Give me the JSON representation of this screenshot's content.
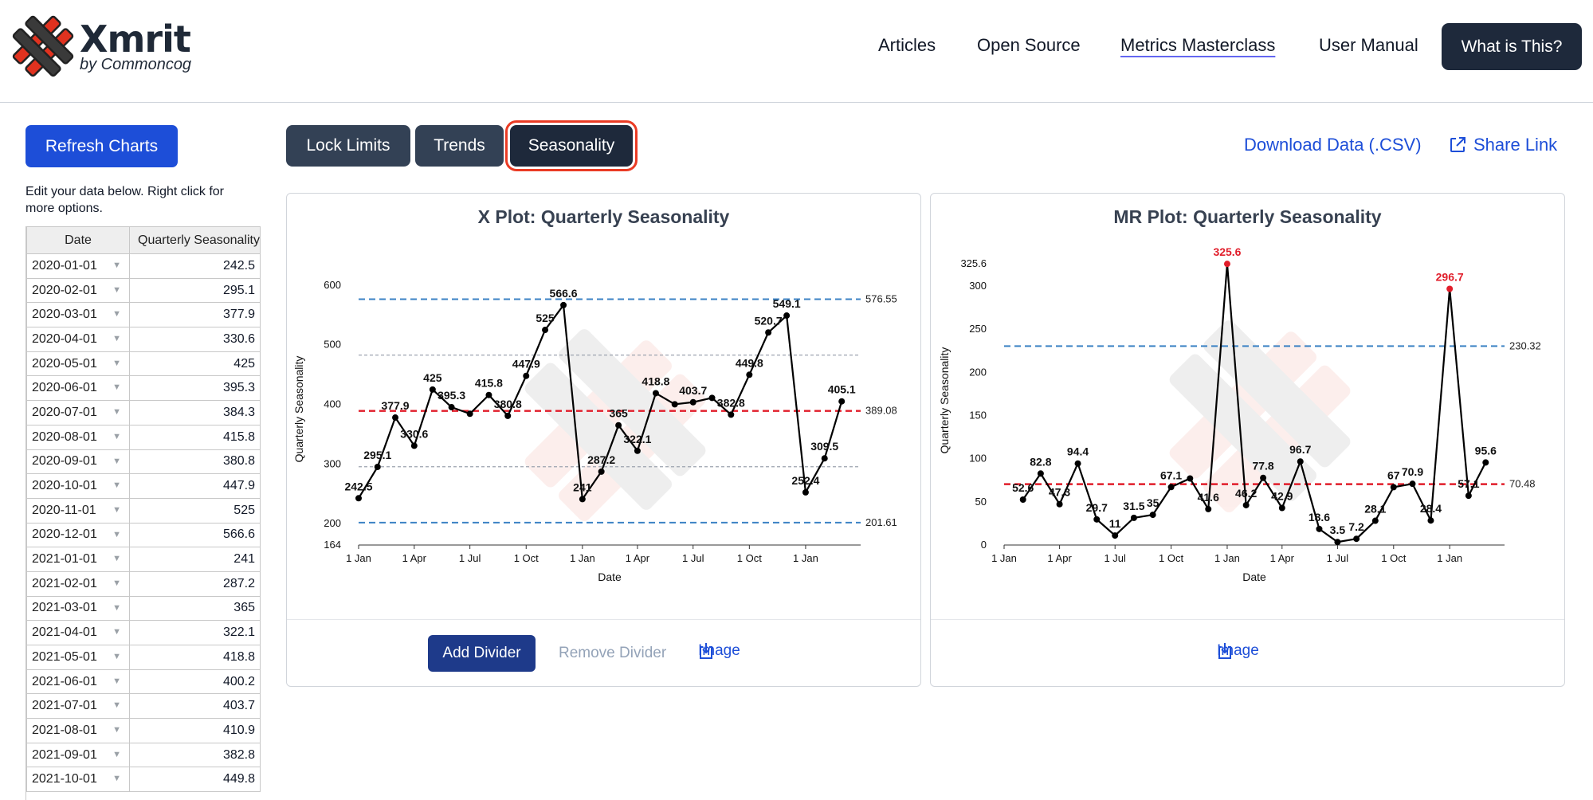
{
  "header": {
    "brand": "Xmrit",
    "brand_sub": "by Commoncog",
    "nav": [
      "Articles",
      "Open Source",
      "Metrics Masterclass",
      "User Manual"
    ],
    "cta": "What is This?"
  },
  "sidebar": {
    "refresh": "Refresh Charts",
    "help": "Edit your data below. Right click for more options.",
    "columns": [
      "Date",
      "Quarterly Seasonality"
    ],
    "rows": [
      [
        "2020-01-01",
        "242.5"
      ],
      [
        "2020-02-01",
        "295.1"
      ],
      [
        "2020-03-01",
        "377.9"
      ],
      [
        "2020-04-01",
        "330.6"
      ],
      [
        "2020-05-01",
        "425"
      ],
      [
        "2020-06-01",
        "395.3"
      ],
      [
        "2020-07-01",
        "384.3"
      ],
      [
        "2020-08-01",
        "415.8"
      ],
      [
        "2020-09-01",
        "380.8"
      ],
      [
        "2020-10-01",
        "447.9"
      ],
      [
        "2020-11-01",
        "525"
      ],
      [
        "2020-12-01",
        "566.6"
      ],
      [
        "2021-01-01",
        "241"
      ],
      [
        "2021-02-01",
        "287.2"
      ],
      [
        "2021-03-01",
        "365"
      ],
      [
        "2021-04-01",
        "322.1"
      ],
      [
        "2021-05-01",
        "418.8"
      ],
      [
        "2021-06-01",
        "400.2"
      ],
      [
        "2021-07-01",
        "403.7"
      ],
      [
        "2021-08-01",
        "410.9"
      ],
      [
        "2021-09-01",
        "382.8"
      ],
      [
        "2021-10-01",
        "449.8"
      ]
    ]
  },
  "toolbar": {
    "lock": "Lock Limits",
    "trends": "Trends",
    "seasonality": "Seasonality",
    "download": "Download Data (.CSV)",
    "share": "Share Link"
  },
  "xcard": {
    "title": "X Plot: Quarterly Seasonality",
    "add_divider": "Add Divider",
    "remove_divider": "Remove Divider",
    "image": "Image"
  },
  "mrcard": {
    "title": "MR Plot: Quarterly Seasonality",
    "image": "Image"
  },
  "chart_data": [
    {
      "type": "line",
      "title": "X Plot: Quarterly Seasonality",
      "xlabel": "Date",
      "ylabel": "Quarterly Seasonality",
      "x_ticks": [
        "1 Jan",
        "1 Apr",
        "1 Jul",
        "1 Oct",
        "1 Jan",
        "1 Apr",
        "1 Jul",
        "1 Oct",
        "1 Jan"
      ],
      "y_ticks": [
        164,
        200,
        300,
        400,
        500,
        600
      ],
      "ylim": [
        164,
        620
      ],
      "x": [
        "2020-01-01",
        "2020-02-01",
        "2020-03-01",
        "2020-04-01",
        "2020-05-01",
        "2020-06-01",
        "2020-07-01",
        "2020-08-01",
        "2020-09-01",
        "2020-10-01",
        "2020-11-01",
        "2020-12-01",
        "2021-01-01",
        "2021-02-01",
        "2021-03-01",
        "2021-04-01",
        "2021-05-01",
        "2021-06-01",
        "2021-07-01",
        "2021-08-01",
        "2021-09-01",
        "2021-10-01",
        "2021-11-01",
        "2021-12-01",
        "2022-01-01",
        "2022-02-01",
        "2022-03-01"
      ],
      "values": [
        242.5,
        295.1,
        377.9,
        330.6,
        425,
        395.3,
        384.3,
        415.8,
        380.8,
        447.9,
        525,
        566.6,
        241,
        287.2,
        365,
        322.1,
        418.8,
        400.2,
        403.7,
        410.9,
        382.8,
        449.8,
        520.7,
        549.1,
        252.4,
        309.5,
        405.1
      ],
      "labels": [
        "242.5",
        "295.1",
        "377.9",
        "330.6",
        "425",
        "395.3",
        "",
        "415.8",
        "380.8",
        "447.9",
        "525",
        "566.6",
        "241",
        "287.2",
        "365",
        "322.1",
        "418.8",
        "",
        "403.7",
        "",
        "382.8",
        "449.8",
        "520.7",
        "549.1",
        "252.4",
        "309.5",
        "405.1"
      ],
      "limits": {
        "upper": 576.55,
        "center": 389.08,
        "lower": 201.61
      },
      "quartiles": [
        482.8,
        295.4
      ]
    },
    {
      "type": "line",
      "title": "MR Plot: Quarterly Seasonality",
      "xlabel": "Date",
      "ylabel": "Quarterly Seasonality",
      "x_ticks": [
        "1 Jan",
        "1 Apr",
        "1 Jul",
        "1 Oct",
        "1 Jan",
        "1 Apr",
        "1 Jul",
        "1 Oct",
        "1 Jan"
      ],
      "y_ticks": [
        0,
        50,
        100,
        150,
        200,
        250,
        300,
        325.6
      ],
      "ylim": [
        0,
        335
      ],
      "x": [
        "2020-02-01",
        "2020-03-01",
        "2020-04-01",
        "2020-05-01",
        "2020-06-01",
        "2020-07-01",
        "2020-08-01",
        "2020-09-01",
        "2020-10-01",
        "2020-11-01",
        "2020-12-01",
        "2021-01-01",
        "2021-02-01",
        "2021-03-01",
        "2021-04-01",
        "2021-05-01",
        "2021-06-01",
        "2021-07-01",
        "2021-08-01",
        "2021-09-01",
        "2021-10-01",
        "2021-11-01",
        "2021-12-01",
        "2022-01-01",
        "2022-02-01",
        "2022-03-01"
      ],
      "values": [
        52.6,
        82.8,
        47.3,
        94.4,
        29.7,
        11,
        31.5,
        35,
        67.1,
        77.1,
        41.6,
        325.6,
        46.2,
        77.8,
        42.9,
        96.7,
        18.6,
        3.5,
        7.2,
        28.1,
        67,
        70.9,
        28.4,
        296.7,
        57.1,
        95.6
      ],
      "labels": [
        "52.6",
        "82.8",
        "47.3",
        "94.4",
        "29.7",
        "11",
        "31.5",
        "35",
        "67.1",
        "",
        "41.6",
        "325.6",
        "46.2",
        "77.8",
        "42.9",
        "96.7",
        "18.6",
        "3.5",
        "7.2",
        "28.1",
        "67",
        "70.9",
        "28.4",
        "296.7",
        "57.1",
        "95.6"
      ],
      "highlight": [
        11,
        23
      ],
      "limits": {
        "upper": 230.32,
        "center": 70.48
      }
    }
  ]
}
